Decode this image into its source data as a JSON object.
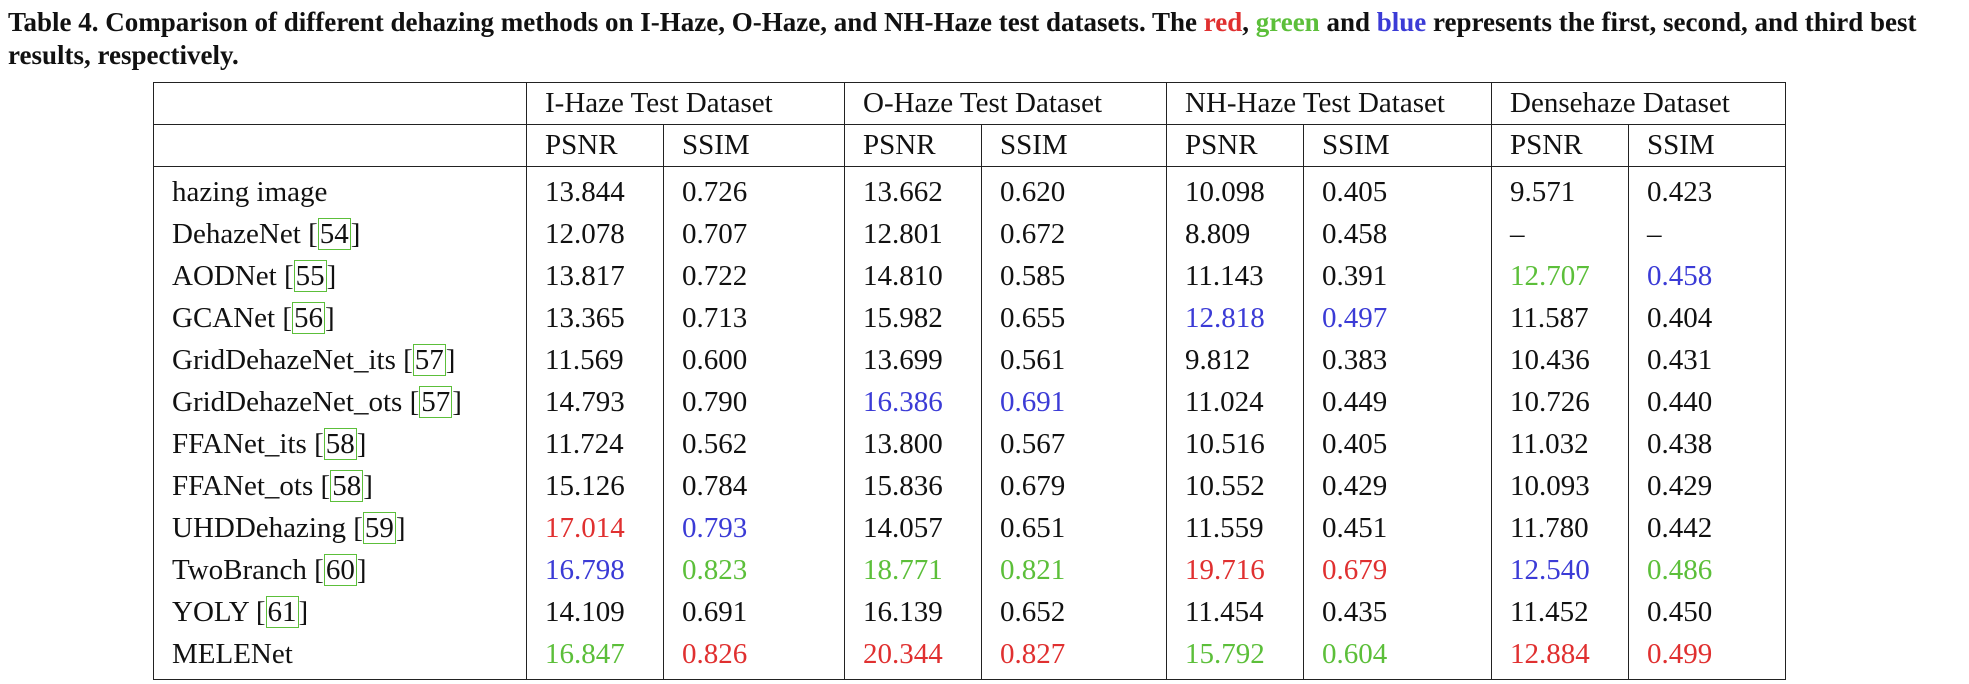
{
  "caption": {
    "part1": "Table 4. Comparison of different dehazing methods on I-Haze, O-Haze, and NH-Haze test datasets. The ",
    "red_word": "red",
    "sep1": ", ",
    "green_word": "green",
    "sep2": " and ",
    "blue_word": "blue",
    "part2": " represents the first, second, and third best results, respectively."
  },
  "colors": {
    "red": "#e03030",
    "green": "#5cbf3a",
    "blue": "#3b3bd6"
  },
  "table": {
    "datasets": [
      "I-Haze Test Dataset",
      "O-Haze Test Dataset",
      "NH-Haze Test Dataset",
      "Densehaze Dataset"
    ],
    "metrics": [
      "PSNR",
      "SSIM",
      "PSNR",
      "SSIM",
      "PSNR",
      "SSIM",
      "PSNR",
      "SSIM"
    ],
    "rows": [
      {
        "method": "hazing image",
        "ref": "",
        "cells": [
          {
            "v": "13.844",
            "c": ""
          },
          {
            "v": "0.726",
            "c": ""
          },
          {
            "v": "13.662",
            "c": ""
          },
          {
            "v": "0.620",
            "c": ""
          },
          {
            "v": "10.098",
            "c": ""
          },
          {
            "v": "0.405",
            "c": ""
          },
          {
            "v": "9.571",
            "c": ""
          },
          {
            "v": "0.423",
            "c": ""
          }
        ]
      },
      {
        "method": "DehazeNet",
        "ref": "54",
        "cells": [
          {
            "v": "12.078",
            "c": ""
          },
          {
            "v": "0.707",
            "c": ""
          },
          {
            "v": "12.801",
            "c": ""
          },
          {
            "v": "0.672",
            "c": ""
          },
          {
            "v": "8.809",
            "c": ""
          },
          {
            "v": "0.458",
            "c": ""
          },
          {
            "v": "–",
            "c": ""
          },
          {
            "v": "–",
            "c": ""
          }
        ]
      },
      {
        "method": "AODNet",
        "ref": "55",
        "cells": [
          {
            "v": "13.817",
            "c": ""
          },
          {
            "v": "0.722",
            "c": ""
          },
          {
            "v": "14.810",
            "c": ""
          },
          {
            "v": "0.585",
            "c": ""
          },
          {
            "v": "11.143",
            "c": ""
          },
          {
            "v": "0.391",
            "c": ""
          },
          {
            "v": "12.707",
            "c": "green"
          },
          {
            "v": "0.458",
            "c": "blue"
          }
        ]
      },
      {
        "method": "GCANet",
        "ref": "56",
        "cells": [
          {
            "v": "13.365",
            "c": ""
          },
          {
            "v": "0.713",
            "c": ""
          },
          {
            "v": "15.982",
            "c": ""
          },
          {
            "v": "0.655",
            "c": ""
          },
          {
            "v": "12.818",
            "c": "blue"
          },
          {
            "v": "0.497",
            "c": "blue"
          },
          {
            "v": "11.587",
            "c": ""
          },
          {
            "v": "0.404",
            "c": ""
          }
        ]
      },
      {
        "method": "GridDehazeNet_its",
        "ref": "57",
        "cells": [
          {
            "v": "11.569",
            "c": ""
          },
          {
            "v": "0.600",
            "c": ""
          },
          {
            "v": "13.699",
            "c": ""
          },
          {
            "v": "0.561",
            "c": ""
          },
          {
            "v": "9.812",
            "c": ""
          },
          {
            "v": "0.383",
            "c": ""
          },
          {
            "v": "10.436",
            "c": ""
          },
          {
            "v": "0.431",
            "c": ""
          }
        ]
      },
      {
        "method": "GridDehazeNet_ots",
        "ref": "57",
        "cells": [
          {
            "v": "14.793",
            "c": ""
          },
          {
            "v": "0.790",
            "c": ""
          },
          {
            "v": "16.386",
            "c": "blue"
          },
          {
            "v": "0.691",
            "c": "blue"
          },
          {
            "v": "11.024",
            "c": ""
          },
          {
            "v": "0.449",
            "c": ""
          },
          {
            "v": "10.726",
            "c": ""
          },
          {
            "v": "0.440",
            "c": ""
          }
        ]
      },
      {
        "method": "FFANet_its",
        "ref": "58",
        "cells": [
          {
            "v": "11.724",
            "c": ""
          },
          {
            "v": "0.562",
            "c": ""
          },
          {
            "v": "13.800",
            "c": ""
          },
          {
            "v": "0.567",
            "c": ""
          },
          {
            "v": "10.516",
            "c": ""
          },
          {
            "v": "0.405",
            "c": ""
          },
          {
            "v": "11.032",
            "c": ""
          },
          {
            "v": "0.438",
            "c": ""
          }
        ]
      },
      {
        "method": "FFANet_ots",
        "ref": "58",
        "cells": [
          {
            "v": "15.126",
            "c": ""
          },
          {
            "v": "0.784",
            "c": ""
          },
          {
            "v": "15.836",
            "c": ""
          },
          {
            "v": "0.679",
            "c": ""
          },
          {
            "v": "10.552",
            "c": ""
          },
          {
            "v": "0.429",
            "c": ""
          },
          {
            "v": "10.093",
            "c": ""
          },
          {
            "v": "0.429",
            "c": ""
          }
        ]
      },
      {
        "method": "UHDDehazing",
        "ref": "59",
        "cells": [
          {
            "v": "17.014",
            "c": "red"
          },
          {
            "v": "0.793",
            "c": "blue"
          },
          {
            "v": "14.057",
            "c": ""
          },
          {
            "v": "0.651",
            "c": ""
          },
          {
            "v": "11.559",
            "c": ""
          },
          {
            "v": "0.451",
            "c": ""
          },
          {
            "v": "11.780",
            "c": ""
          },
          {
            "v": "0.442",
            "c": ""
          }
        ]
      },
      {
        "method": "TwoBranch",
        "ref": "60",
        "cells": [
          {
            "v": "16.798",
            "c": "blue"
          },
          {
            "v": "0.823",
            "c": "green"
          },
          {
            "v": "18.771",
            "c": "green"
          },
          {
            "v": "0.821",
            "c": "green"
          },
          {
            "v": "19.716",
            "c": "red"
          },
          {
            "v": "0.679",
            "c": "red"
          },
          {
            "v": "12.540",
            "c": "blue"
          },
          {
            "v": "0.486",
            "c": "green"
          }
        ]
      },
      {
        "method": "YOLY",
        "ref": "61",
        "cells": [
          {
            "v": "14.109",
            "c": ""
          },
          {
            "v": "0.691",
            "c": ""
          },
          {
            "v": "16.139",
            "c": ""
          },
          {
            "v": "0.652",
            "c": ""
          },
          {
            "v": "11.454",
            "c": ""
          },
          {
            "v": "0.435",
            "c": ""
          },
          {
            "v": "11.452",
            "c": ""
          },
          {
            "v": "0.450",
            "c": ""
          }
        ]
      },
      {
        "method": "MELENet",
        "ref": "",
        "cells": [
          {
            "v": "16.847",
            "c": "green"
          },
          {
            "v": "0.826",
            "c": "red"
          },
          {
            "v": "20.344",
            "c": "red"
          },
          {
            "v": "0.827",
            "c": "red"
          },
          {
            "v": "15.792",
            "c": "green"
          },
          {
            "v": "0.604",
            "c": "green"
          },
          {
            "v": "12.884",
            "c": "red"
          },
          {
            "v": "0.499",
            "c": "red"
          }
        ]
      }
    ]
  }
}
